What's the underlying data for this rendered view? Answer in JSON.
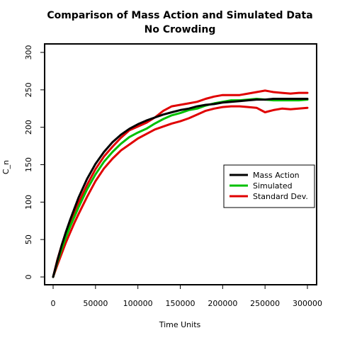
{
  "chart_data": {
    "type": "line",
    "title": "Comparison of Mass Action and Simulated Data",
    "subtitle": "No Crowding",
    "xlabel": "Time Units",
    "ylabel": "C_n",
    "xlim": [
      0,
      300000
    ],
    "ylim": [
      0,
      300
    ],
    "xticks": [
      0,
      50000,
      100000,
      150000,
      200000,
      250000,
      300000
    ],
    "yticks": [
      0,
      50,
      100,
      150,
      200,
      250,
      300
    ],
    "grid": false,
    "legend_position": "right",
    "series": [
      {
        "name": "Mass Action",
        "color": "#000000",
        "x": [
          0,
          5000,
          10000,
          15000,
          20000,
          25000,
          30000,
          40000,
          50000,
          60000,
          70000,
          80000,
          90000,
          100000,
          110000,
          120000,
          130000,
          140000,
          150000,
          160000,
          170000,
          180000,
          190000,
          200000,
          210000,
          220000,
          230000,
          240000,
          250000,
          260000,
          270000,
          280000,
          290000,
          300000
        ],
        "y": [
          0,
          22,
          42,
          60,
          76,
          91,
          106,
          131,
          151,
          167,
          180,
          190,
          198,
          204,
          209,
          213,
          217,
          220,
          223,
          225,
          228,
          230,
          231,
          233,
          234,
          235,
          236,
          237,
          237,
          238,
          238,
          238,
          238,
          238
        ]
      },
      {
        "name": "Simulated",
        "color": "#00c000",
        "x": [
          0,
          5000,
          10000,
          15000,
          20000,
          25000,
          30000,
          40000,
          50000,
          60000,
          70000,
          80000,
          90000,
          100000,
          110000,
          120000,
          130000,
          140000,
          150000,
          160000,
          170000,
          180000,
          190000,
          200000,
          210000,
          220000,
          230000,
          240000,
          250000,
          260000,
          270000,
          280000,
          290000,
          300000
        ],
        "y": [
          0,
          20,
          37,
          53,
          67,
          80,
          93,
          117,
          137,
          154,
          167,
          178,
          187,
          193,
          198,
          205,
          211,
          216,
          219,
          223,
          225,
          229,
          232,
          234,
          236,
          236,
          237,
          238,
          237,
          236,
          236,
          236,
          236,
          237
        ]
      },
      {
        "name": "Standard Dev.",
        "color": "#e00000",
        "x": [
          0,
          5000,
          10000,
          15000,
          20000,
          25000,
          30000,
          40000,
          50000,
          60000,
          70000,
          80000,
          90000,
          100000,
          110000,
          120000,
          130000,
          140000,
          150000,
          160000,
          170000,
          180000,
          190000,
          200000,
          210000,
          220000,
          230000,
          240000,
          250000,
          260000,
          270000,
          280000,
          290000,
          300000
        ],
        "y": [
          0,
          23,
          42,
          59,
          73,
          86,
          99,
          123,
          144,
          161,
          174,
          186,
          196,
          201,
          206,
          213,
          222,
          228,
          230,
          232,
          234,
          238,
          241,
          243,
          243,
          243,
          245,
          247,
          249,
          247,
          246,
          245,
          246,
          246
        ]
      },
      {
        "name": "",
        "color": "#e00000",
        "x": [
          0,
          5000,
          10000,
          15000,
          20000,
          25000,
          30000,
          40000,
          50000,
          60000,
          70000,
          80000,
          90000,
          100000,
          110000,
          120000,
          130000,
          140000,
          150000,
          160000,
          170000,
          180000,
          190000,
          200000,
          210000,
          220000,
          230000,
          240000,
          250000,
          260000,
          270000,
          280000,
          290000,
          300000
        ],
        "y": [
          0,
          16,
          31,
          46,
          59,
          72,
          84,
          107,
          128,
          145,
          158,
          169,
          177,
          185,
          191,
          197,
          201,
          205,
          208,
          212,
          217,
          222,
          225,
          227,
          228,
          228,
          227,
          226,
          220,
          223,
          225,
          224,
          225,
          226
        ]
      }
    ]
  }
}
